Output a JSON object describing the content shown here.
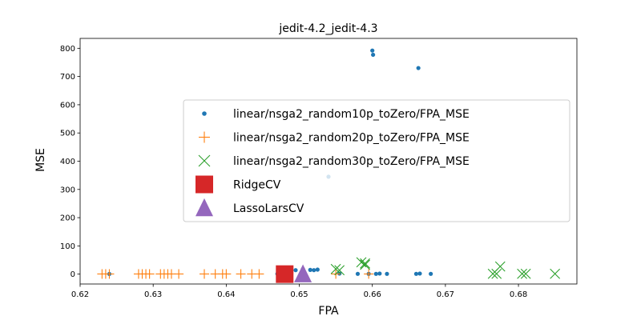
{
  "chart_data": {
    "type": "scatter",
    "title": "jedit-4.2_jedit-4.3",
    "xlabel": "FPA",
    "ylabel": "MSE",
    "xlim": [
      0.62,
      0.688
    ],
    "ylim": [
      -35,
      835
    ],
    "xticks": [
      0.62,
      0.63,
      0.64,
      0.65,
      0.66,
      0.67,
      0.68
    ],
    "xtick_labels": [
      "0.62",
      "0.63",
      "0.64",
      "0.65",
      "0.66",
      "0.67",
      "0.68"
    ],
    "yticks": [
      0,
      100,
      200,
      300,
      400,
      500,
      600,
      700,
      800
    ],
    "ytick_labels": [
      "0",
      "100",
      "200",
      "300",
      "400",
      "500",
      "600",
      "700",
      "800"
    ],
    "legend_position": "center-right",
    "series": [
      {
        "name": "linear/nsga2_random10p_toZero/FPA_MSE",
        "marker": "dot",
        "color": "#1f77b4",
        "points": [
          [
            0.624,
            0.5
          ],
          [
            0.647,
            1
          ],
          [
            0.6495,
            14
          ],
          [
            0.6505,
            18
          ],
          [
            0.6515,
            15
          ],
          [
            0.652,
            14
          ],
          [
            0.6525,
            16
          ],
          [
            0.654,
            345
          ],
          [
            0.6555,
            2
          ],
          [
            0.658,
            1
          ],
          [
            0.6595,
            1
          ],
          [
            0.66,
            792
          ],
          [
            0.6601,
            777
          ],
          [
            0.6605,
            1
          ],
          [
            0.661,
            2
          ],
          [
            0.662,
            1
          ],
          [
            0.666,
            1
          ],
          [
            0.6663,
            730
          ],
          [
            0.6665,
            2
          ],
          [
            0.668,
            1
          ]
        ]
      },
      {
        "name": "linear/nsga2_random20p_toZero/FPA_MSE",
        "marker": "plus",
        "color": "#ff7f0e",
        "points": [
          [
            0.623,
            0.5
          ],
          [
            0.6235,
            0.5
          ],
          [
            0.624,
            0.5
          ],
          [
            0.628,
            0.5
          ],
          [
            0.6285,
            0.5
          ],
          [
            0.629,
            0.5
          ],
          [
            0.6295,
            0.5
          ],
          [
            0.631,
            0.5
          ],
          [
            0.6315,
            0.5
          ],
          [
            0.632,
            0.5
          ],
          [
            0.6325,
            0.5
          ],
          [
            0.6335,
            0.5
          ],
          [
            0.637,
            0.5
          ],
          [
            0.6385,
            0.5
          ],
          [
            0.6395,
            0.5
          ],
          [
            0.64,
            0.5
          ],
          [
            0.642,
            0.5
          ],
          [
            0.6435,
            0.5
          ],
          [
            0.6445,
            0.5
          ],
          [
            0.6475,
            0.5
          ],
          [
            0.655,
            0.5
          ],
          [
            0.6595,
            0.5
          ]
        ]
      },
      {
        "name": "linear/nsga2_random30p_toZero/FPA_MSE",
        "marker": "x",
        "color": "#2ca02c",
        "points": [
          [
            0.655,
            18
          ],
          [
            0.6555,
            14
          ],
          [
            0.6585,
            42
          ],
          [
            0.659,
            38
          ],
          [
            0.659,
            33
          ],
          [
            0.6765,
            1
          ],
          [
            0.677,
            1
          ],
          [
            0.6775,
            27
          ],
          [
            0.6805,
            1
          ],
          [
            0.681,
            1
          ],
          [
            0.685,
            1
          ]
        ]
      },
      {
        "name": "RidgeCV",
        "marker": "square",
        "color": "#d62728",
        "points": [
          [
            0.648,
            0
          ]
        ]
      },
      {
        "name": "LassoLarsCV",
        "marker": "triangle",
        "color": "#9467bd",
        "points": [
          [
            0.6505,
            0
          ]
        ]
      }
    ]
  }
}
